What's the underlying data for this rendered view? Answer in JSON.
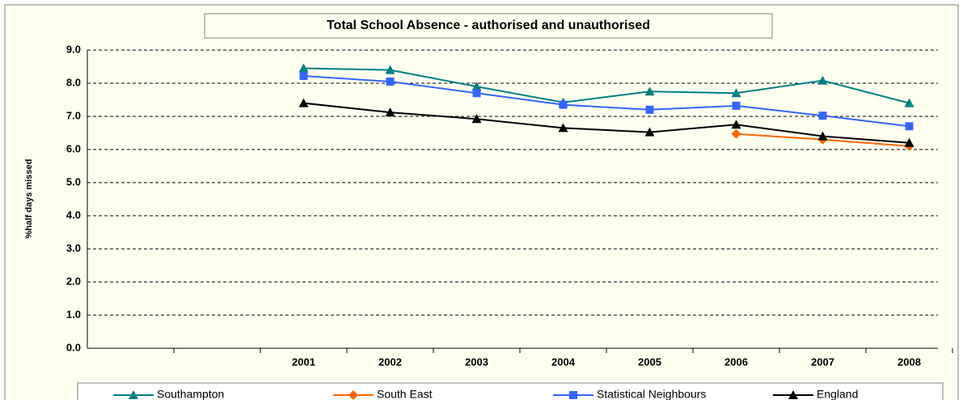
{
  "chart_data": {
    "type": "line",
    "title": "Total School Absence - authorised and unauthorised",
    "y_label": "%half days missed",
    "categories": [
      null,
      null,
      "2001",
      "2002",
      "2003",
      "2004",
      "2005",
      "2006",
      "2007",
      "2008"
    ],
    "series": [
      {
        "name": "Southampton",
        "color": "#008080",
        "marker": "triangle",
        "values": [
          null,
          null,
          8.45,
          8.4,
          7.9,
          7.42,
          7.75,
          7.7,
          8.08,
          7.4
        ]
      },
      {
        "name": "South East",
        "color": "#ff6600",
        "marker": "diamond",
        "values": [
          null,
          null,
          null,
          null,
          null,
          null,
          null,
          6.47,
          6.3,
          6.1
        ]
      },
      {
        "name": "Statistical Neighbours",
        "color": "#3366ff",
        "marker": "square",
        "values": [
          null,
          null,
          8.22,
          8.05,
          7.7,
          7.35,
          7.2,
          7.32,
          7.02,
          6.7
        ]
      },
      {
        "name": "England",
        "color": "#000000",
        "marker": "triangle",
        "values": [
          null,
          null,
          7.4,
          7.12,
          6.92,
          6.65,
          6.52,
          6.75,
          6.4,
          6.2
        ]
      }
    ],
    "ylim": [
      0,
      9
    ],
    "yticks": [
      {
        "value": 0,
        "label": "0.0"
      },
      {
        "value": 1,
        "label": "1.0"
      },
      {
        "value": 2,
        "label": "2.0"
      },
      {
        "value": 3,
        "label": "3.0"
      },
      {
        "value": 4,
        "label": "4.0"
      },
      {
        "value": 5,
        "label": "5.0"
      },
      {
        "value": 6,
        "label": "6.0"
      },
      {
        "value": 7,
        "label": "7.0"
      },
      {
        "value": 8,
        "label": "8.0"
      },
      {
        "value": 9,
        "label": "9.0"
      }
    ],
    "grid": true
  }
}
